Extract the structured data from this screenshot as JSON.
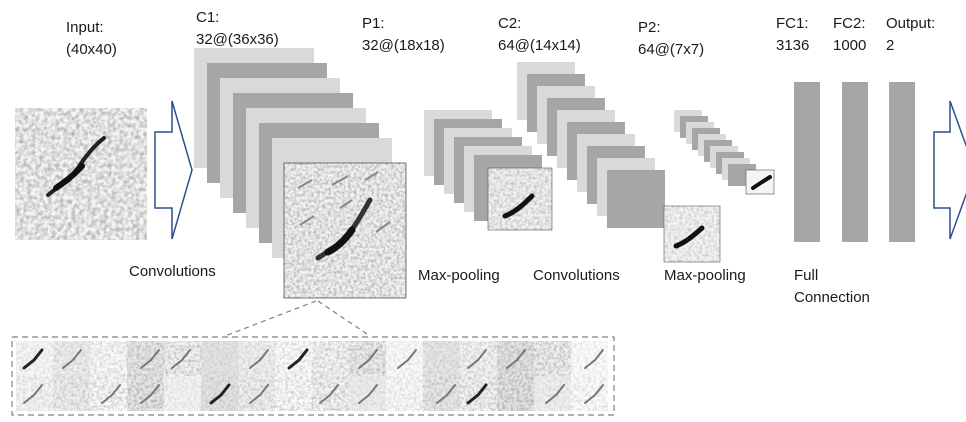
{
  "layers": {
    "input": {
      "name": "Input:",
      "size": "(40x40)"
    },
    "c1": {
      "name": "C1:",
      "size": "32@(36x36)"
    },
    "p1": {
      "name": "P1:",
      "size": "32@(18x18)"
    },
    "c2": {
      "name": "C2:",
      "size": "64@(14x14)"
    },
    "p2": {
      "name": "P2:",
      "size": "64@(7x7)"
    },
    "fc1": {
      "name": "FC1:",
      "size": "3136"
    },
    "fc2": {
      "name": "FC2:",
      "size": "1000"
    },
    "output": {
      "name": "Output:",
      "size": "2"
    }
  },
  "operations": {
    "conv1": "Convolutions",
    "pool1": "Max-pooling",
    "conv2": "Convolutions",
    "pool2": "Max-pooling",
    "fc_line1": "Full",
    "fc_line2": "Connection"
  },
  "colors": {
    "map_light": "#d9d9d9",
    "map_dark": "#a6a6a6",
    "fc_bar": "#a6a6a6",
    "arrow_stroke": "#2f4f8f",
    "dashed_border": "#808080"
  }
}
